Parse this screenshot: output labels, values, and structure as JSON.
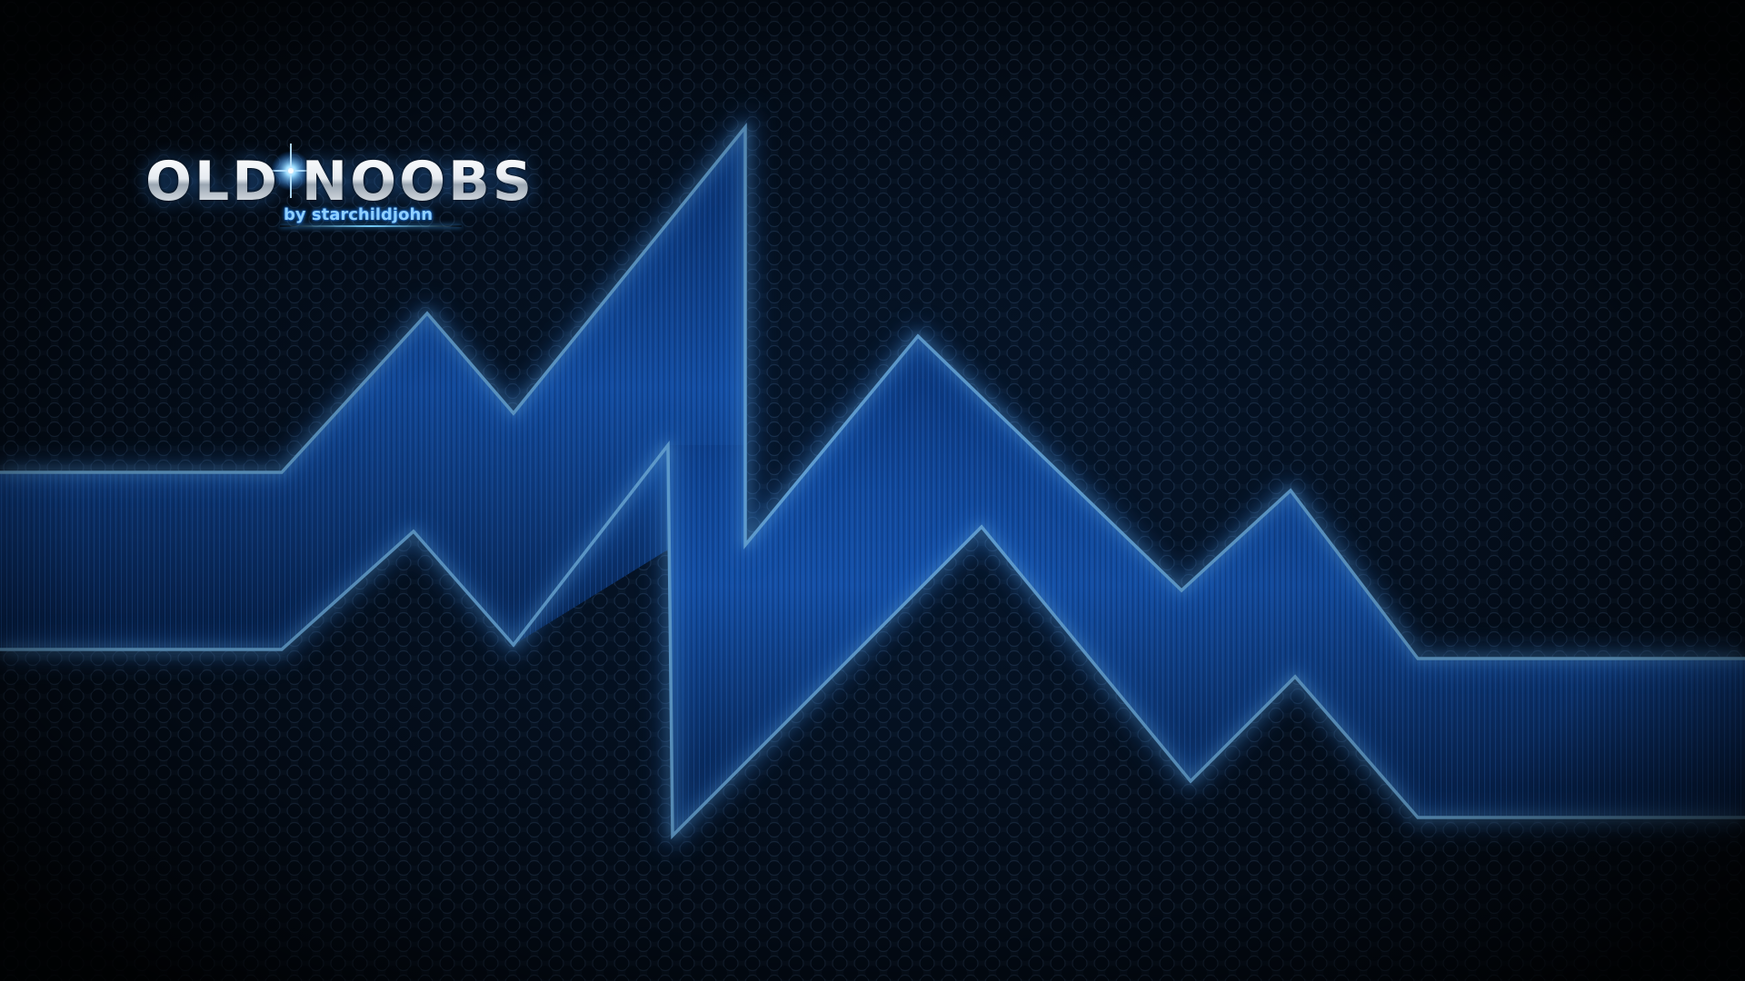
{
  "logo": {
    "title": "OLD NOOBS",
    "byline": "by starchildjohn"
  },
  "colors": {
    "background": "#05080d",
    "glow": "#3fa2ff",
    "band_deep": "#062a66",
    "band_bright": "#1f73e6",
    "logo_text": "#eef2f6"
  }
}
